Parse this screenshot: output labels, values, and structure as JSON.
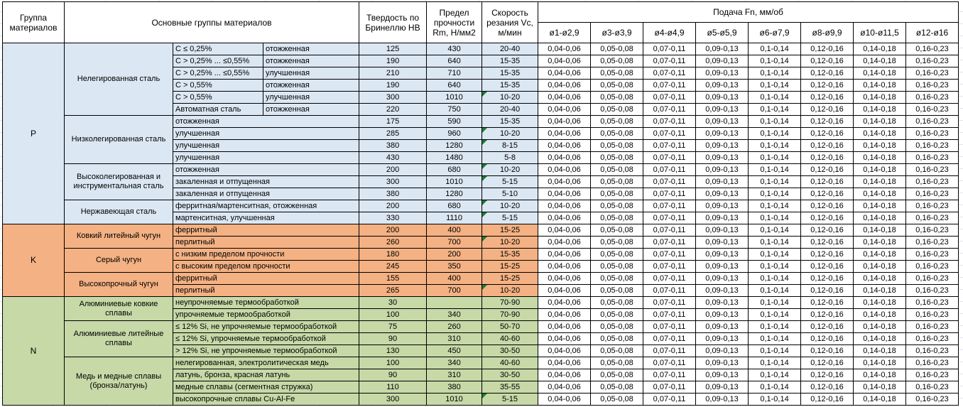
{
  "colors": {
    "group_p": "#dbe7f3",
    "group_k": "#f4b183",
    "group_n": "#c6d9a7",
    "marker": "#1e7b34",
    "grid": "#dfe5ee",
    "border": "#000000"
  },
  "headers": {
    "group": "Группа материалов",
    "main_groups": "Основные группы материалов",
    "hardness": "Твердость по Бринеллю НВ",
    "strength": "Предел прочности Rm, Н/мм2",
    "speed": "Скорость резания Vc, м/мин",
    "feed": "Подача Fn, мм/об",
    "diameters": [
      "ø1-ø2,9",
      "ø3-ø3,9",
      "ø4-ø4,9",
      "ø5-ø5,9",
      "ø6-ø7,9",
      "ø8-ø9,9",
      "ø10-ø11,5",
      "ø12-ø16"
    ]
  },
  "feed_values": [
    "0,04-0,06",
    "0,05-0,08",
    "0,07-0,11",
    "0,09-0,13",
    "0,1-0,14",
    "0,12-0,16",
    "0,14-0,18",
    "0,16-0,23"
  ],
  "groups": [
    {
      "letter": "P",
      "color_key": "group_p",
      "subgroups": [
        {
          "name": "Нелегированная сталь",
          "rows": [
            {
              "cells": [
                "C ≤ 0,25%",
                "отожженная"
              ],
              "hb": "125",
              "rm": "430",
              "vc": "20-40",
              "flag": false
            },
            {
              "cells": [
                "C > 0,25% ... ≤0,55%",
                "отожженная"
              ],
              "hb": "190",
              "rm": "640",
              "vc": "15-35",
              "flag": false
            },
            {
              "cells": [
                "C > 0,25% ... ≤0,55%",
                "улучшенная"
              ],
              "hb": "210",
              "rm": "710",
              "vc": "15-35",
              "flag": false
            },
            {
              "cells": [
                "C > 0,55%",
                "отожженная"
              ],
              "hb": "190",
              "rm": "640",
              "vc": "15-35",
              "flag": false
            },
            {
              "cells": [
                "C > 0,55%",
                "улучшенная"
              ],
              "hb": "300",
              "rm": "1010",
              "vc": "10-20",
              "flag": true
            },
            {
              "cells": [
                "Автоматная сталь",
                "отожженная"
              ],
              "hb": "220",
              "rm": "750",
              "vc": "20-40",
              "flag": false
            }
          ]
        },
        {
          "name": "Низколегированная сталь",
          "rows": [
            {
              "cells": [
                "отожженная"
              ],
              "hb": "175",
              "rm": "590",
              "vc": "15-35",
              "flag": false
            },
            {
              "cells": [
                "улучшенная"
              ],
              "hb": "285",
              "rm": "960",
              "vc": "10-20",
              "flag": true
            },
            {
              "cells": [
                "улучшенная"
              ],
              "hb": "380",
              "rm": "1280",
              "vc": "8-15",
              "flag": true
            },
            {
              "cells": [
                "улучшенная"
              ],
              "hb": "430",
              "rm": "1480",
              "vc": "5-8",
              "flag": false
            }
          ]
        },
        {
          "name": "Высоколегированная и инструментальная сталь",
          "rows": [
            {
              "cells": [
                "отожженная"
              ],
              "hb": "200",
              "rm": "680",
              "vc": "10-20",
              "flag": true
            },
            {
              "cells": [
                "закаленная и отпущенная"
              ],
              "hb": "300",
              "rm": "1010",
              "vc": "5-15",
              "flag": true
            },
            {
              "cells": [
                "закаленная и отпущенная"
              ],
              "hb": "380",
              "rm": "1280",
              "vc": "5-10",
              "flag": false
            }
          ]
        },
        {
          "name": "Нержавеющая сталь",
          "rows": [
            {
              "cells": [
                "ферритная/мартенситная, отожженная"
              ],
              "hb": "200",
              "rm": "680",
              "vc": "10-20",
              "flag": true
            },
            {
              "cells": [
                "мартенситная, улучшенная"
              ],
              "hb": "330",
              "rm": "1110",
              "vc": "5-15",
              "flag": true
            }
          ]
        }
      ]
    },
    {
      "letter": "K",
      "color_key": "group_k",
      "subgroups": [
        {
          "name": "Ковкий литейный чугун",
          "rows": [
            {
              "cells": [
                "ферритный"
              ],
              "hb": "200",
              "rm": "400",
              "vc": "15-25",
              "flag": false
            },
            {
              "cells": [
                "перлитный"
              ],
              "hb": "260",
              "rm": "700",
              "vc": "10-20",
              "flag": true
            }
          ]
        },
        {
          "name": "Серый чугун",
          "rows": [
            {
              "cells": [
                "с низким пределом прочности"
              ],
              "hb": "180",
              "rm": "200",
              "vc": "15-35",
              "flag": false
            },
            {
              "cells": [
                "с высоким пределом прочности"
              ],
              "hb": "245",
              "rm": "350",
              "vc": "15-25",
              "flag": false
            }
          ]
        },
        {
          "name": "Высокопрочный чугун",
          "rows": [
            {
              "cells": [
                "ферритный"
              ],
              "hb": "155",
              "rm": "400",
              "vc": "15-25",
              "flag": false
            },
            {
              "cells": [
                "перлитный"
              ],
              "hb": "265",
              "rm": "700",
              "vc": "10-20",
              "flag": true
            }
          ]
        }
      ]
    },
    {
      "letter": "N",
      "color_key": "group_n",
      "subgroups": [
        {
          "name": "Алюминиевые ковкие сплавы",
          "rows": [
            {
              "cells": [
                "неупрочняемые термообработкой"
              ],
              "hb": "30",
              "rm": "",
              "vc": "70-90",
              "flag": false
            },
            {
              "cells": [
                "упрочняемые термообработкой"
              ],
              "hb": "100",
              "rm": "340",
              "vc": "70-90",
              "flag": false
            }
          ]
        },
        {
          "name": "Алюминиевые литейные сплавы",
          "rows": [
            {
              "cells": [
                "≤ 12% Si, не упрочняемые термообработкой"
              ],
              "hb": "75",
              "rm": "260",
              "vc": "50-70",
              "flag": false
            },
            {
              "cells": [
                "≤ 12% Si, упрочняемые термообработкой"
              ],
              "hb": "90",
              "rm": "310",
              "vc": "40-60",
              "flag": false
            },
            {
              "cells": [
                "> 12% Si, не упрочняемые термообработкой"
              ],
              "hb": "130",
              "rm": "450",
              "vc": "30-50",
              "flag": false
            }
          ]
        },
        {
          "name": "Медь и медные сплавы (бронза/латунь)",
          "rows": [
            {
              "cells": [
                "нелегированная, электролитическая медь"
              ],
              "hb": "100",
              "rm": "340",
              "vc": "40-60",
              "flag": false
            },
            {
              "cells": [
                "латунь, бронза, красная латунь"
              ],
              "hb": "90",
              "rm": "310",
              "vc": "30-50",
              "flag": false
            },
            {
              "cells": [
                "медные сплавы (сегментная стружка)"
              ],
              "hb": "110",
              "rm": "380",
              "vc": "35-55",
              "flag": false
            },
            {
              "cells": [
                "высокопрочные сплавы Cu-Al-Fe"
              ],
              "hb": "300",
              "rm": "1010",
              "vc": "5-15",
              "flag": true
            }
          ]
        }
      ]
    }
  ]
}
